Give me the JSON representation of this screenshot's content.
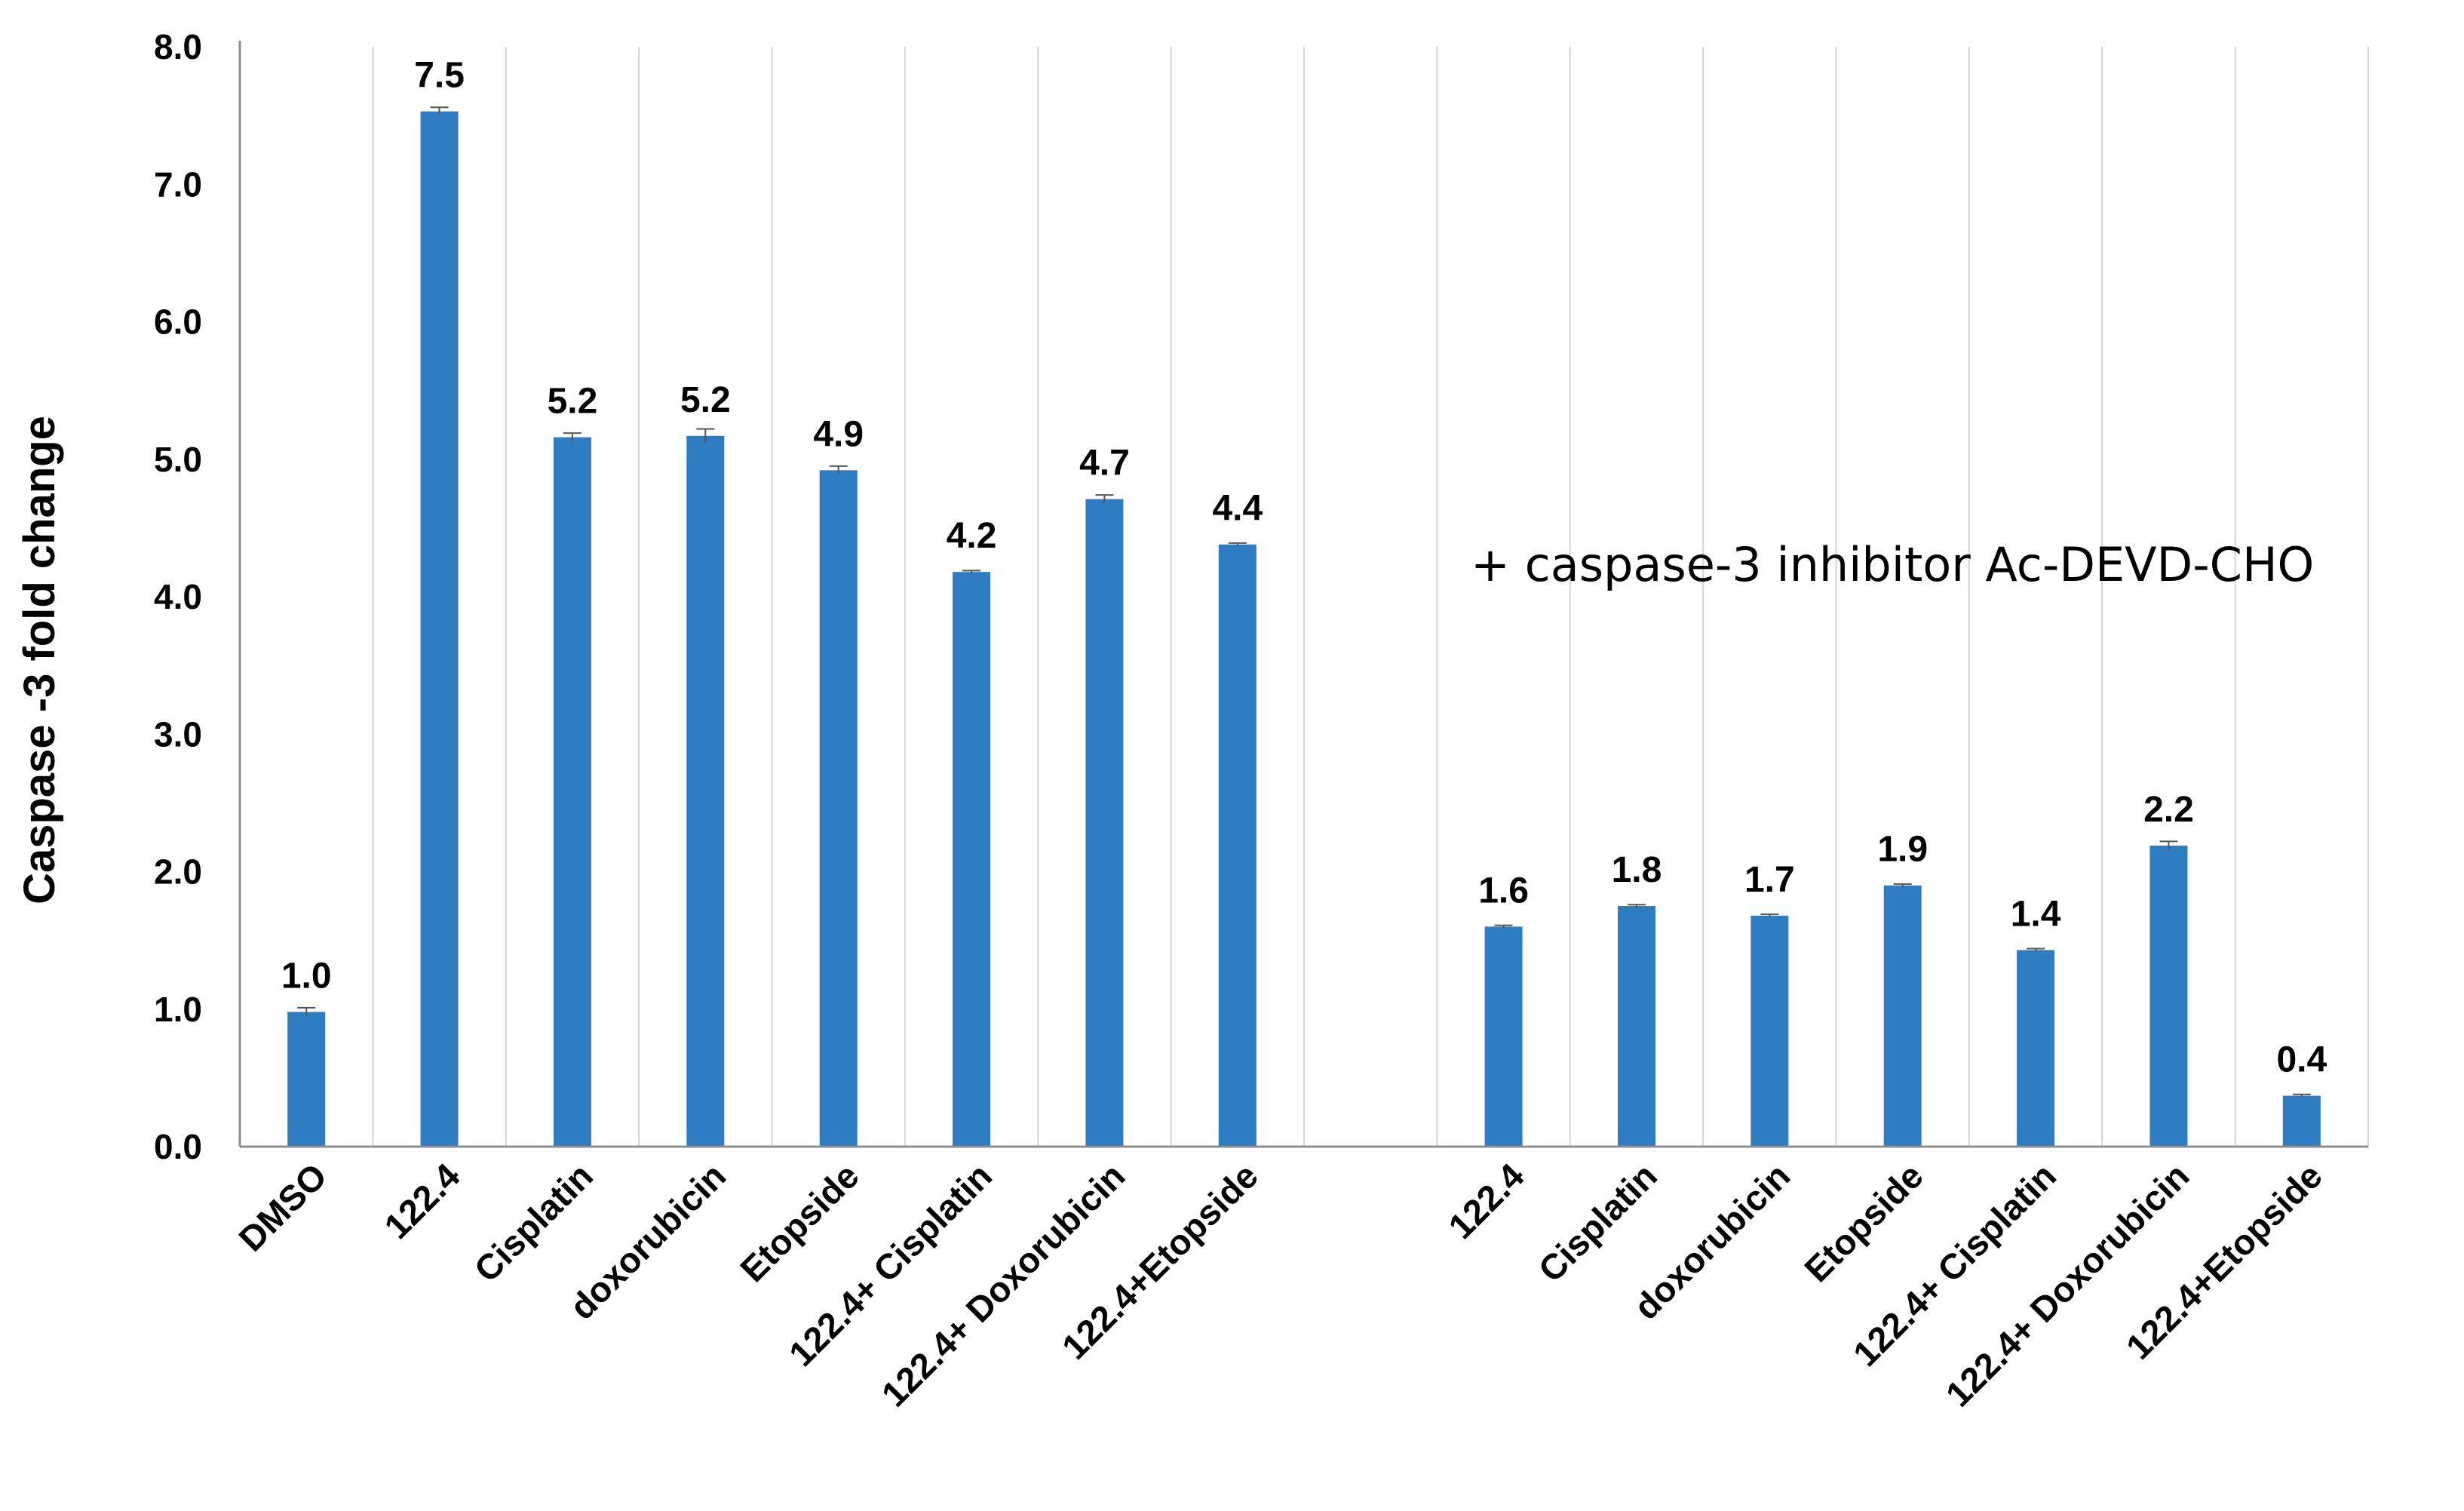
{
  "chart_data": {
    "type": "bar",
    "title": "",
    "xlabel": "",
    "ylabel": "Caspase -3 fold change",
    "ylim": [
      0,
      8
    ],
    "yticks": [
      "0.0",
      "1.0",
      "2.0",
      "3.0",
      "4.0",
      "5.0",
      "6.0",
      "7.0",
      "8.0"
    ],
    "grid": "vertical",
    "annotation": "+ caspase-3 inhibitor Ac-DEVD-CHO",
    "categories": [
      "DMSO",
      "122.4",
      "Cisplatin",
      "doxorubicin",
      "Etopside",
      "122.4+ Cisplatin",
      "122.4+ Doxorubicin",
      "122.4+Etopside",
      "",
      "122.4",
      "Cisplatin",
      "doxorubicin",
      "Etopside",
      "122.4+ Cisplatin",
      "122.4+ Doxorubicin",
      "122.4+Etopside"
    ],
    "values": [
      1.0,
      7.5,
      5.2,
      5.2,
      4.9,
      4.2,
      4.7,
      4.4,
      null,
      1.6,
      1.8,
      1.7,
      1.9,
      1.4,
      2.2,
      0.4
    ],
    "bar_values": [
      0.98,
      7.53,
      5.16,
      5.17,
      4.92,
      4.18,
      4.71,
      4.38,
      null,
      1.6,
      1.75,
      1.68,
      1.9,
      1.43,
      2.19,
      0.37
    ],
    "data_labels": [
      "1.0",
      "7.5",
      "5.2",
      "5.2",
      "4.9",
      "4.2",
      "4.7",
      "4.4",
      "",
      "1.6",
      "1.8",
      "1.7",
      "1.9",
      "1.4",
      "2.2",
      "0.4"
    ],
    "errors": [
      0.03,
      0.03,
      0.03,
      0.05,
      0.03,
      0.01,
      0.03,
      0.01,
      null,
      0.01,
      0.01,
      0.01,
      0.01,
      0.01,
      0.03,
      0.01
    ],
    "series_color": "#2E7DC2",
    "grid_color": "#D4D4D4",
    "axis_color": "#8C8C8C"
  }
}
